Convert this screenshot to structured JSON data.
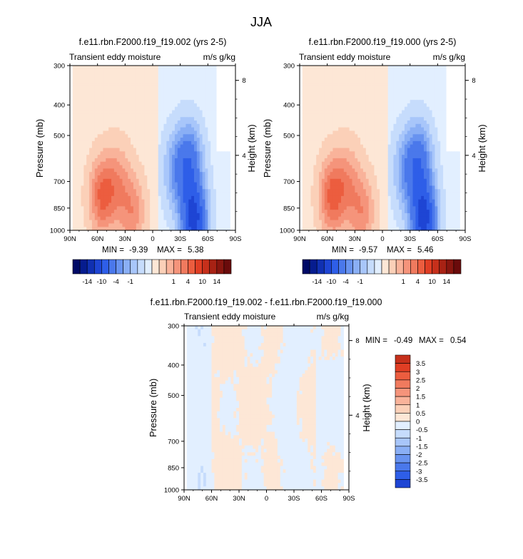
{
  "figure_title": "JJA",
  "colors": {
    "blue_scale": [
      "#e2efff",
      "#c6dcfc",
      "#a8c6fa",
      "#8aaff5",
      "#6893f0",
      "#4a78eb",
      "#2e5ee8",
      "#1e45d4",
      "#1030b2",
      "#061c8f",
      "#000a66"
    ],
    "red_scale": [
      "#fde7d6",
      "#fbd0b8",
      "#f9b39a",
      "#f5947b",
      "#f07a5e",
      "#ec5d3f",
      "#e03e24",
      "#c6301b",
      "#a82214",
      "#88160f",
      "#6a0b0b"
    ]
  },
  "chart_data": [
    {
      "type": "heatmap",
      "title": "f.e11.rbn.F2000.f19_f19.002 (yrs 2-5)",
      "left_string": "Transient eddy moisture",
      "right_string": "m/s g/kg",
      "xlabel": "",
      "ylabel": "Pressure (mb)",
      "y2label": "Height (km)",
      "x_ticks": [
        "90N",
        "60N",
        "30N",
        "0",
        "30S",
        "60S",
        "90S"
      ],
      "y_ticks": [
        "300",
        "400",
        "500",
        "700",
        "850",
        "1000"
      ],
      "y2_ticks": [
        "8",
        "4"
      ],
      "xlim": [
        90,
        -90
      ],
      "ylim": [
        1000,
        300
      ],
      "min_label": "MIN =",
      "min_value": "-9.39",
      "max_label": "MAX =",
      "max_value": "5.38",
      "colorbar_levels": [
        "-14",
        "-10",
        "-4",
        "-1",
        "1",
        "4",
        "10",
        "14"
      ],
      "zero_crossing_lat": -7,
      "features": [
        {
          "lat": 55,
          "p": 780,
          "value": 4.5
        },
        {
          "lat": 38,
          "p": 700,
          "value": 2.5
        },
        {
          "lat": 22,
          "p": 880,
          "value": 3
        },
        {
          "lat": -45,
          "p": 930,
          "value": -9
        },
        {
          "lat": -40,
          "p": 600,
          "value": -5
        },
        {
          "lat": -25,
          "p": 650,
          "value": -3
        }
      ]
    },
    {
      "type": "heatmap",
      "title": "f.e11.rbn.F2000.f19_f19.000 (yrs 2-5)",
      "left_string": "Transient eddy moisture",
      "right_string": "m/s g/kg",
      "xlabel": "",
      "ylabel": "Pressure (mb)",
      "y2label": "Height (km)",
      "x_ticks": [
        "90N",
        "60N",
        "30N",
        "0",
        "30S",
        "60S",
        "90S"
      ],
      "y_ticks": [
        "300",
        "400",
        "500",
        "700",
        "850",
        "1000"
      ],
      "y2_ticks": [
        "8",
        "4"
      ],
      "xlim": [
        90,
        -90
      ],
      "ylim": [
        1000,
        300
      ],
      "min_label": "MIN =",
      "min_value": "-9.57",
      "max_label": "MAX =",
      "max_value": "5.46",
      "colorbar_levels": [
        "-14",
        "-10",
        "-4",
        "-1",
        "1",
        "4",
        "10",
        "14"
      ],
      "zero_crossing_lat": -5,
      "features": [
        {
          "lat": 55,
          "p": 780,
          "value": 4.6
        },
        {
          "lat": 38,
          "p": 700,
          "value": 2.5
        },
        {
          "lat": 22,
          "p": 880,
          "value": 3
        },
        {
          "lat": -45,
          "p": 930,
          "value": -9.2
        },
        {
          "lat": -40,
          "p": 600,
          "value": -5
        },
        {
          "lat": -25,
          "p": 650,
          "value": -3
        }
      ]
    },
    {
      "type": "heatmap",
      "title": "f.e11.rbn.F2000.f19_f19.002 - f.e11.rbn.F2000.f19_f19.000",
      "left_string": "Transient eddy moisture",
      "right_string": "m/s g/kg",
      "xlabel": "",
      "ylabel": "Pressure (mb)",
      "y2label": "Height (km)",
      "x_ticks": [
        "90N",
        "60N",
        "30N",
        "0",
        "30S",
        "60S",
        "90S"
      ],
      "y_ticks": [
        "300",
        "400",
        "500",
        "700",
        "850",
        "1000"
      ],
      "y2_ticks": [
        "8",
        "4"
      ],
      "xlim": [
        90,
        -90
      ],
      "ylim": [
        1000,
        300
      ],
      "min_label": "MIN =",
      "min_value": "-0.49",
      "max_label": "MAX =",
      "max_value": "0.54",
      "colorbar_levels": [
        "3.5",
        "3",
        "2.5",
        "2",
        "1.5",
        "1",
        "0.5",
        "0",
        "-0.5",
        "-1",
        "-1.5",
        "-2",
        "-2.5",
        "-3",
        "-3.5"
      ]
    }
  ]
}
